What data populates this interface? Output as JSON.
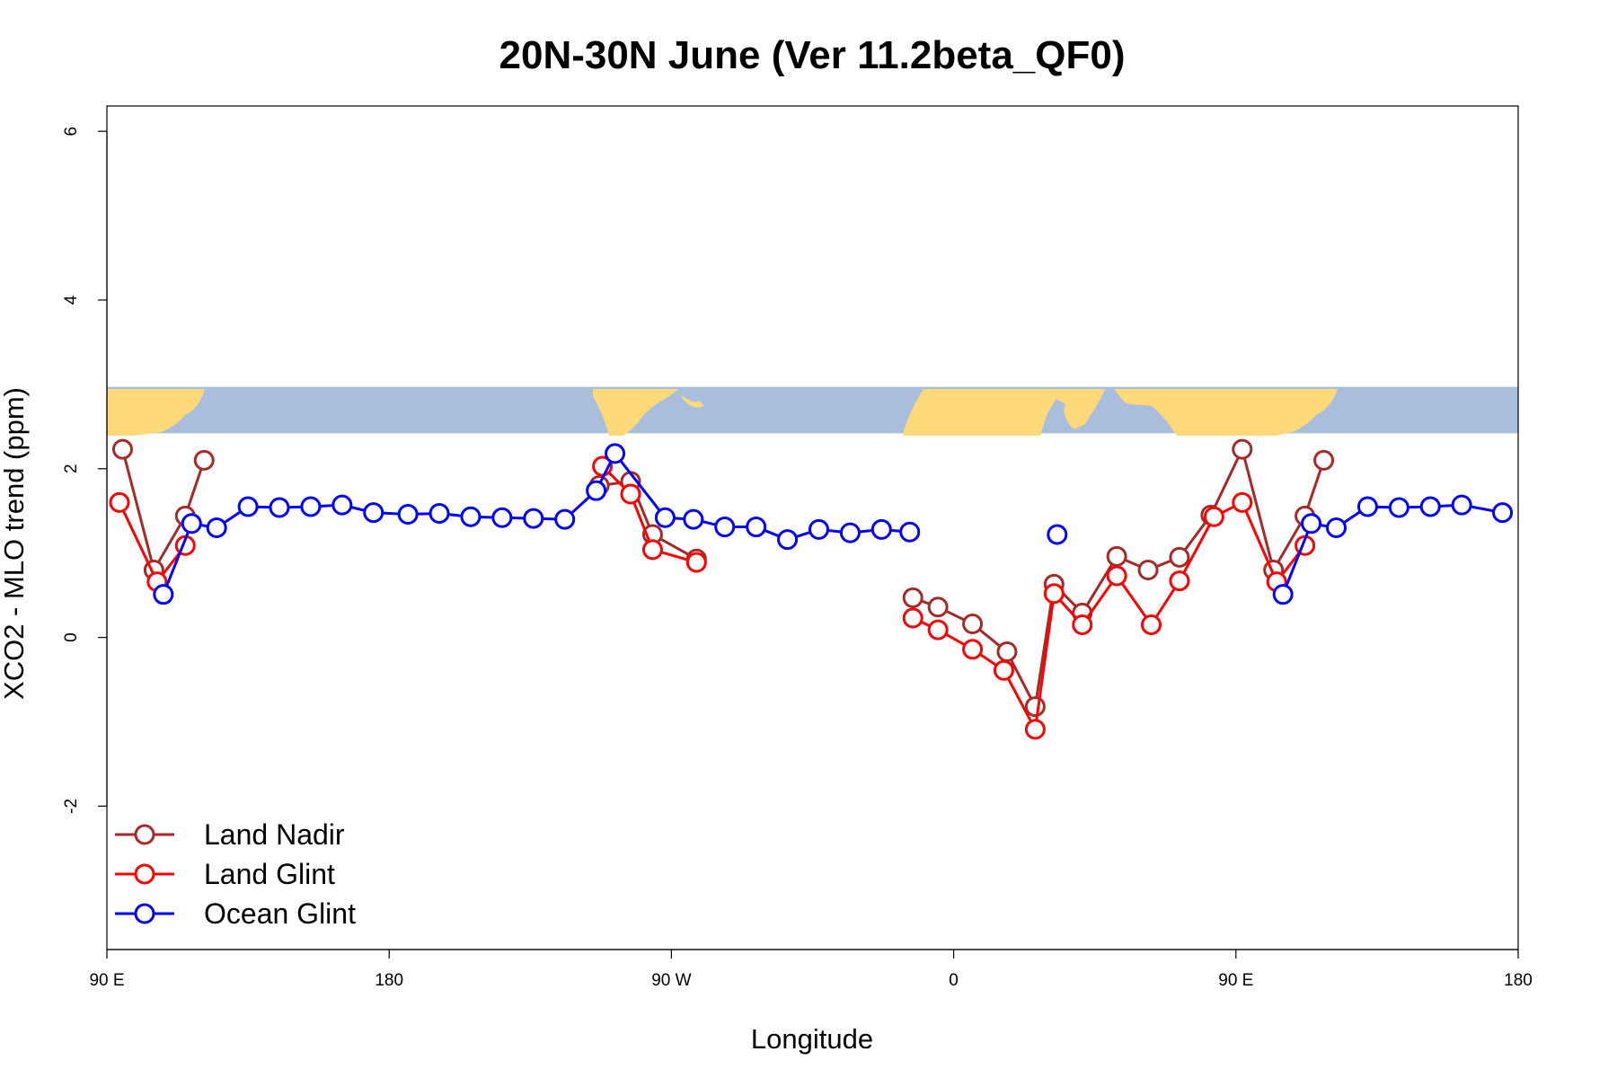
{
  "chart_data": {
    "type": "line",
    "title": "20N-30N June (Ver 11.2beta_QF0)",
    "xlabel": "Longitude",
    "ylabel": "XCO2 - MLO trend (ppm)",
    "xlim": [
      90,
      540
    ],
    "ylim": [
      -3.7,
      6.3
    ],
    "x_ticks": [
      {
        "value": 90,
        "label": "90 E"
      },
      {
        "value": 180,
        "label": "180"
      },
      {
        "value": 270,
        "label": "90 W"
      },
      {
        "value": 360,
        "label": "0"
      },
      {
        "value": 450,
        "label": "90 E"
      },
      {
        "value": 540,
        "label": "180"
      }
    ],
    "y_ticks": [
      {
        "value": -2,
        "label": "-2"
      },
      {
        "value": 0,
        "label": "0"
      },
      {
        "value": 2,
        "label": "2"
      },
      {
        "value": 4,
        "label": "4"
      },
      {
        "value": 6,
        "label": "6"
      }
    ],
    "map_strip": {
      "y_range": [
        2.42,
        2.97
      ],
      "ocean_color": "#a8bedc",
      "land_color": "#fdd97a"
    },
    "legend_position": "bottom-left",
    "series": [
      {
        "name": "Land Nadir",
        "color": "#a52a2a",
        "segments": [
          [
            [
              95,
              2.23
            ],
            [
              105,
              0.8
            ],
            [
              115,
              1.44
            ],
            [
              121,
              2.1
            ]
          ],
          [
            [
              247,
              1.8
            ],
            [
              257,
              1.85
            ],
            [
              264,
              1.22
            ],
            [
              278,
              0.93
            ]
          ],
          [
            [
              347,
              0.47
            ],
            [
              355,
              0.36
            ],
            [
              366,
              0.16
            ],
            [
              377,
              -0.17
            ],
            [
              386,
              -0.82
            ],
            [
              392,
              0.63
            ],
            [
              401,
              0.29
            ],
            [
              412,
              0.96
            ],
            [
              422,
              0.8
            ],
            [
              432,
              0.95
            ],
            [
              442,
              1.45
            ],
            [
              452,
              2.23
            ],
            [
              462,
              0.8
            ],
            [
              472,
              1.44
            ],
            [
              478,
              2.1
            ]
          ]
        ]
      },
      {
        "name": "Land Glint",
        "color": "#ff0000",
        "segments": [
          [
            [
              94,
              1.6
            ],
            [
              106,
              0.66
            ],
            [
              115,
              1.09
            ]
          ],
          [
            [
              248,
              2.03
            ],
            [
              257,
              1.7
            ],
            [
              264,
              1.04
            ],
            [
              278,
              0.89
            ]
          ],
          [
            [
              347,
              0.23
            ],
            [
              355,
              0.09
            ],
            [
              366,
              -0.14
            ],
            [
              376,
              -0.39
            ],
            [
              386,
              -1.09
            ],
            [
              392,
              0.52
            ],
            [
              401,
              0.15
            ],
            [
              412,
              0.73
            ],
            [
              423,
              0.15
            ],
            [
              432,
              0.67
            ],
            [
              443,
              1.43
            ],
            [
              452,
              1.6
            ],
            [
              463,
              0.66
            ],
            [
              472,
              1.09
            ]
          ]
        ]
      },
      {
        "name": "Ocean Glint",
        "color": "#0000ff",
        "segments": [
          [
            [
              108,
              0.51
            ],
            [
              117,
              1.35
            ],
            [
              125,
              1.3
            ],
            [
              135,
              1.55
            ],
            [
              145,
              1.54
            ],
            [
              155,
              1.55
            ],
            [
              165,
              1.57
            ],
            [
              175,
              1.48
            ],
            [
              186,
              1.46
            ],
            [
              196,
              1.47
            ],
            [
              206,
              1.43
            ],
            [
              216,
              1.42
            ],
            [
              226,
              1.41
            ],
            [
              236,
              1.4
            ],
            [
              246,
              1.74
            ],
            [
              252,
              2.18
            ],
            [
              268,
              1.42
            ],
            [
              277,
              1.4
            ],
            [
              287,
              1.31
            ],
            [
              297,
              1.31
            ],
            [
              307,
              1.16
            ],
            [
              317,
              1.28
            ],
            [
              327,
              1.24
            ],
            [
              337,
              1.28
            ],
            [
              346,
              1.25
            ]
          ],
          [
            [
              393,
              1.22
            ]
          ],
          [
            [
              465,
              0.51
            ],
            [
              474,
              1.35
            ],
            [
              482,
              1.3
            ],
            [
              492,
              1.55
            ],
            [
              502,
              1.54
            ],
            [
              512,
              1.55
            ],
            [
              522,
              1.57
            ],
            [
              535,
              1.48
            ]
          ]
        ]
      }
    ]
  }
}
